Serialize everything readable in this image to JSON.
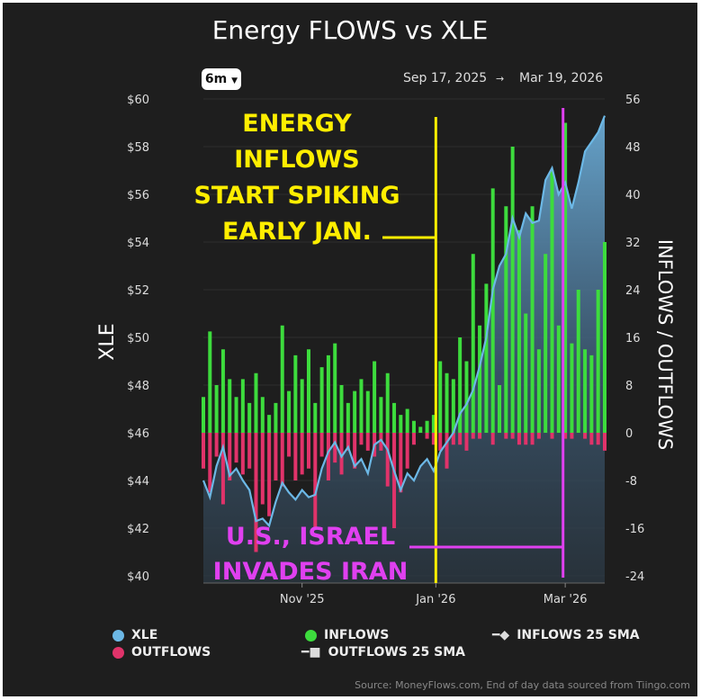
{
  "chart_data": {
    "type": "bar+area",
    "title": "Energy FLOWS vs XLE",
    "range_selector": "6m",
    "date_range": {
      "start": "Sep 17, 2025",
      "arrow": "→",
      "end": "Mar 19, 2026"
    },
    "left_axis": {
      "label": "XLE",
      "ticks": [
        "$40",
        "$42",
        "$44",
        "$46",
        "$48",
        "$50",
        "$52",
        "$54",
        "$56",
        "$58",
        "$60"
      ],
      "range": [
        40,
        60
      ]
    },
    "right_axis": {
      "label": "INFLOWS / OUTFLOWS",
      "ticks": [
        "-24",
        "-16",
        "-8",
        "0",
        "8",
        "16",
        "24",
        "32",
        "40",
        "48",
        "56"
      ],
      "range": [
        -24,
        56
      ]
    },
    "x_axis": {
      "ticks": [
        {
          "label": "Nov '25",
          "date": "2025-11-01"
        },
        {
          "label": "Jan '26",
          "date": "2026-01-01"
        },
        {
          "label": "Mar '26",
          "date": "2026-03-01"
        }
      ],
      "range": [
        "2025-09-17",
        "2026-03-19"
      ]
    },
    "grid": true,
    "x": [
      "2025-09-17",
      "2025-09-20",
      "2025-09-23",
      "2025-09-26",
      "2025-09-29",
      "2025-10-02",
      "2025-10-05",
      "2025-10-08",
      "2025-10-11",
      "2025-10-14",
      "2025-10-17",
      "2025-10-20",
      "2025-10-23",
      "2025-10-26",
      "2025-10-29",
      "2025-11-01",
      "2025-11-04",
      "2025-11-07",
      "2025-11-10",
      "2025-11-13",
      "2025-11-16",
      "2025-11-19",
      "2025-11-22",
      "2025-11-25",
      "2025-11-28",
      "2025-12-01",
      "2025-12-04",
      "2025-12-07",
      "2025-12-10",
      "2025-12-13",
      "2025-12-16",
      "2025-12-19",
      "2025-12-22",
      "2025-12-25",
      "2025-12-28",
      "2025-12-31",
      "2026-01-03",
      "2026-01-06",
      "2026-01-09",
      "2026-01-12",
      "2026-01-15",
      "2026-01-18",
      "2026-01-21",
      "2026-01-24",
      "2026-01-27",
      "2026-01-30",
      "2026-02-02",
      "2026-02-05",
      "2026-02-08",
      "2026-02-11",
      "2026-02-14",
      "2026-02-17",
      "2026-02-20",
      "2026-02-23",
      "2026-02-26",
      "2026-03-01",
      "2026-03-04",
      "2026-03-07",
      "2026-03-10",
      "2026-03-13",
      "2026-03-16",
      "2026-03-19"
    ],
    "series": [
      {
        "name": "XLE",
        "color": "#6cb8e6",
        "values": [
          44.0,
          43.3,
          44.6,
          45.4,
          44.2,
          44.5,
          44.0,
          43.6,
          42.3,
          42.4,
          42.1,
          43.1,
          43.9,
          43.5,
          43.2,
          43.6,
          43.3,
          43.4,
          44.5,
          45.2,
          45.6,
          45.0,
          45.4,
          44.6,
          44.9,
          44.3,
          45.5,
          45.7,
          45.3,
          44.4,
          43.6,
          44.3,
          44.0,
          44.6,
          44.9,
          44.4,
          45.2,
          45.6,
          46.0,
          46.8,
          47.2,
          47.8,
          48.8,
          50.0,
          52.0,
          53.0,
          53.5,
          55.0,
          54.2,
          55.2,
          54.8,
          54.9,
          56.6,
          57.1,
          56.0,
          56.5,
          55.4,
          56.5,
          57.8,
          58.2,
          58.6,
          59.3
        ]
      },
      {
        "name": "INFLOWS",
        "color": "#3ddc3d",
        "values": [
          6,
          17,
          8,
          14,
          9,
          6,
          9,
          5,
          10,
          6,
          3,
          5,
          18,
          7,
          13,
          9,
          14,
          5,
          11,
          13,
          15,
          8,
          5,
          7,
          9,
          7,
          12,
          6,
          10,
          5,
          3,
          4,
          2,
          1,
          2,
          3,
          12,
          10,
          9,
          16,
          12,
          30,
          18,
          25,
          41,
          8,
          38,
          48,
          34,
          20,
          38,
          14,
          30,
          44,
          18,
          52,
          15,
          24,
          14,
          13,
          24,
          32
        ]
      },
      {
        "name": "OUTFLOWS",
        "color": "#e0336a",
        "values": [
          -6,
          -10,
          -4,
          -12,
          -8,
          -5,
          -7,
          -6,
          -20,
          -12,
          -14,
          -8,
          -9,
          -4,
          -8,
          -7,
          -6,
          -16,
          -4,
          -8,
          -5,
          -7,
          -3,
          -6,
          -2,
          -3,
          -4,
          -3,
          -9,
          -16,
          -10,
          -6,
          -2,
          0,
          -1,
          -2,
          -3,
          -6,
          -2,
          -2,
          -3,
          -1,
          -1,
          0,
          -2,
          0,
          -1,
          -1,
          -2,
          -2,
          -2,
          -1,
          0,
          -1,
          0,
          -1,
          -1,
          0,
          -1,
          -2,
          -2,
          -3
        ]
      }
    ],
    "legend": [
      {
        "label": "XLE",
        "color": "#6cb8e6"
      },
      {
        "label": "OUTFLOWS",
        "color": "#e0336a"
      },
      {
        "label": "INFLOWS",
        "color": "#3ddc3d"
      },
      {
        "label": "OUTFLOWS 25 SMA"
      },
      {
        "label": "INFLOWS 25 SMA"
      }
    ],
    "legend_placement": "bottom",
    "annotations": [
      {
        "lines": [
          "ENERGY",
          "INFLOWS",
          "START SPIKING",
          "EARLY JAN."
        ],
        "color": "#ffee00",
        "date": "2026-01-01"
      },
      {
        "lines": [
          "U.S., ISRAEL",
          "INVADES IRAN"
        ],
        "color": "#e040f0",
        "date": "2026-02-28"
      }
    ],
    "source": "Source: MoneyFlows.com, End of day data sourced from Tiingo.com"
  }
}
